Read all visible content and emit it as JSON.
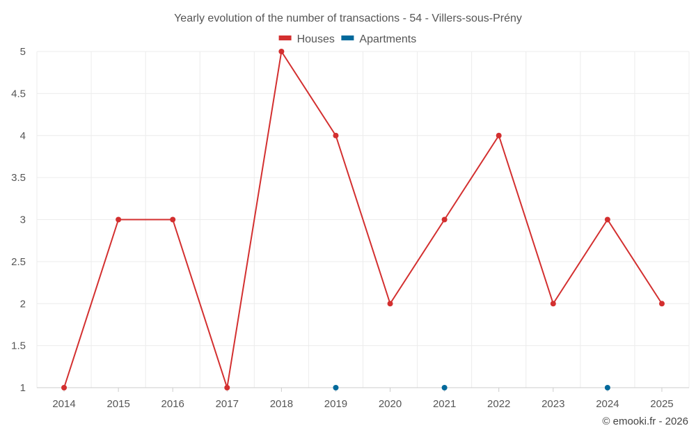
{
  "chart_data": {
    "type": "line",
    "title": "Yearly evolution of the number of transactions - 54 - Villers-sous-Prény",
    "xlabel": "",
    "ylabel": "",
    "categories": [
      "2014",
      "2015",
      "2016",
      "2017",
      "2018",
      "2019",
      "2020",
      "2021",
      "2022",
      "2023",
      "2024",
      "2025"
    ],
    "y_ticks": [
      "1",
      "1.5",
      "2",
      "2.5",
      "3",
      "3.5",
      "4",
      "4.5",
      "5"
    ],
    "ylim": [
      1,
      5
    ],
    "grid": true,
    "legend_position": "top-center",
    "series": [
      {
        "name": "Houses",
        "color": "#d32f2f",
        "style": "line-with-markers",
        "values": [
          1,
          3,
          3,
          1,
          5,
          4,
          2,
          3,
          4,
          2,
          3,
          2
        ]
      },
      {
        "name": "Apartments",
        "color": "#01699b",
        "style": "markers",
        "values": [
          null,
          null,
          null,
          null,
          null,
          1,
          null,
          1,
          null,
          null,
          1,
          null
        ]
      }
    ]
  },
  "credit": "© emooki.fr - 2026"
}
